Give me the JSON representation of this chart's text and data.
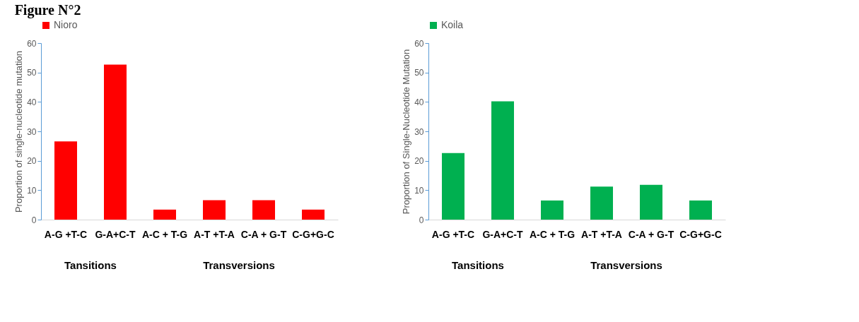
{
  "chart_data": [
    {
      "type": "bar",
      "title": "Figure N°2",
      "ylabel": "Proportion of single-nucleotide mutation",
      "categories": [
        "A-G +T-C",
        "G-A+C-T",
        "A-C + T-G",
        "A-T +T-A",
        "C-A + G-T",
        "C-G+G-C"
      ],
      "series": [
        {
          "name": "Nioro",
          "color": "#ff0000",
          "values": [
            26.6,
            52.7,
            3.4,
            6.6,
            6.6,
            3.4
          ]
        }
      ],
      "ylim": [
        0,
        60
      ],
      "yticks": [
        0,
        10,
        20,
        30,
        40,
        50,
        60
      ],
      "grid": false,
      "legend": "top",
      "annotations": [
        "Tansitions",
        "Transversions"
      ]
    },
    {
      "type": "bar",
      "ylabel": "Proportion of Single-Nucleotide Mutation",
      "categories": [
        "A-G +T-C",
        "G-A+C-T",
        "A-C + T-G",
        "A-T +T-A",
        "C-A + G-T",
        "C-G+G-C"
      ],
      "series": [
        {
          "name": "Koila",
          "color": "#00b050",
          "values": [
            22.6,
            40.2,
            6.5,
            11.2,
            11.8,
            6.5
          ]
        }
      ],
      "ylim": [
        0,
        60
      ],
      "yticks": [
        0,
        10,
        20,
        30,
        40,
        50,
        60
      ],
      "grid": false,
      "legend": "top",
      "annotations": [
        "Tansitions",
        "Transversions"
      ]
    }
  ]
}
